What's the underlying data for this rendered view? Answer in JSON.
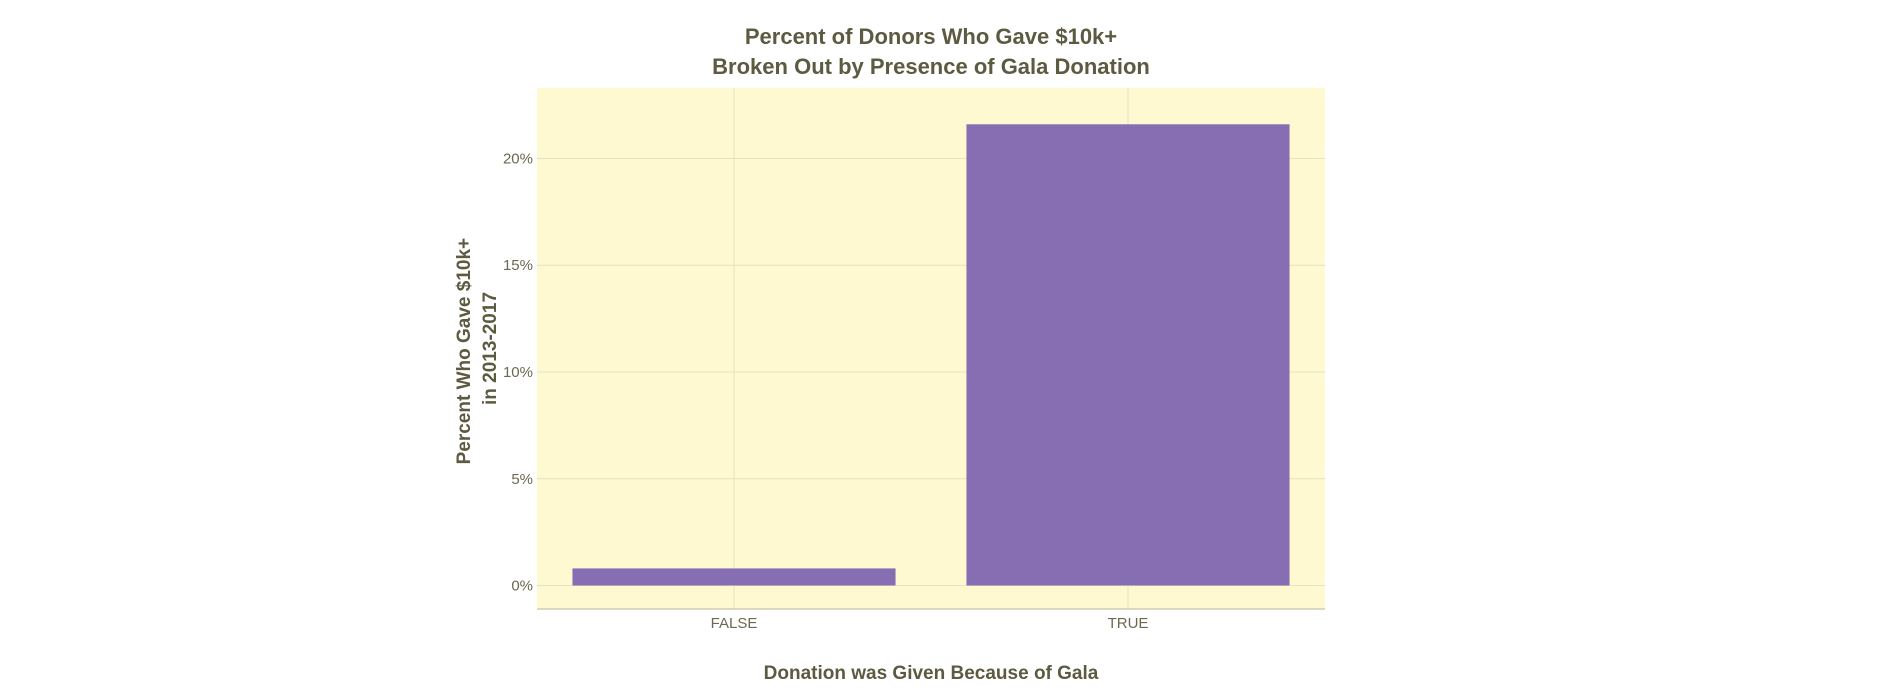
{
  "chart_data": {
    "type": "bar",
    "title": [
      "Percent of Donors Who Gave $10k+",
      "Broken Out by Presence of Gala Donation"
    ],
    "xlabel": "Donation was Given Because of Gala",
    "ylabel": [
      "Percent Who Gave $10k+",
      "in 2013-2017"
    ],
    "categories": [
      "FALSE",
      "TRUE"
    ],
    "values": [
      0.8,
      21.6
    ],
    "y_unit": "%",
    "ylim": [
      -1.1,
      23.3
    ],
    "yticks": [
      0,
      5,
      10,
      15,
      20
    ],
    "ytick_labels": [
      "0%",
      "5%",
      "10%",
      "15%",
      "20%"
    ],
    "grid": true,
    "legend": "none",
    "colors": {
      "bar": "#876db2",
      "plot_background": "#fff9d1",
      "grid": "#e6e2c0",
      "text": "#5c5a40"
    }
  }
}
